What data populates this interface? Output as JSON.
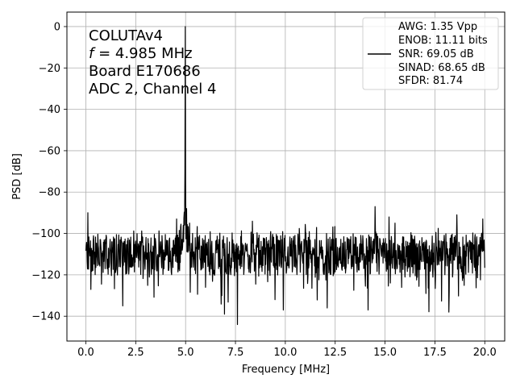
{
  "chart_data": {
    "type": "line",
    "xlabel": "Frequency [MHz]",
    "ylabel": "PSD [dB]",
    "xlim": [
      -0.95,
      21.0
    ],
    "ylim": [
      -152,
      7
    ],
    "xticks": [
      0.0,
      2.5,
      5.0,
      7.5,
      10.0,
      12.5,
      15.0,
      17.5,
      20.0
    ],
    "xtick_labels": [
      "0.0",
      "2.5",
      "5.0",
      "7.5",
      "10.0",
      "12.5",
      "15.0",
      "17.5",
      "20.0"
    ],
    "yticks": [
      0,
      -20,
      -40,
      -60,
      -80,
      -100,
      -120,
      -140
    ],
    "ytick_labels": [
      "0",
      "−20",
      "−40",
      "−60",
      "−80",
      "−100",
      "−120",
      "−140"
    ],
    "grid": true,
    "line_color": "#000000",
    "legend_placement": "top-right",
    "annotation": {
      "line1": "COLUTAv4",
      "line2_symbol": "f",
      "line2_rest": " = 4.985 MHz",
      "line3": "Board E170686",
      "line4": "ADC 2, Channel 4"
    },
    "legend": [
      "AWG: 1.35 Vpp",
      "ENOB: 11.11 bits",
      "SNR: 69.05 dB",
      "SINAD: 68.65 dB",
      "SFDR: 81.74"
    ],
    "noise_floor_db": -110,
    "fundamental": {
      "x": 4.985,
      "y": 0
    },
    "spurs": [
      {
        "x": 0.1,
        "y": -90
      },
      {
        "x": 4.55,
        "y": -93
      },
      {
        "x": 4.75,
        "y": -97
      },
      {
        "x": 5.05,
        "y": -88
      },
      {
        "x": 5.2,
        "y": -95
      },
      {
        "x": 7.6,
        "y": -144
      },
      {
        "x": 14.5,
        "y": -87
      },
      {
        "x": 15.2,
        "y": -92
      },
      {
        "x": 15.5,
        "y": -95
      },
      {
        "x": 18.6,
        "y": -91
      },
      {
        "x": 19.9,
        "y": -93
      }
    ],
    "min_points": [
      {
        "x": 1.85,
        "y": -135
      },
      {
        "x": 6.95,
        "y": -139
      },
      {
        "x": 9.9,
        "y": -137
      },
      {
        "x": 12.1,
        "y": -136
      },
      {
        "x": 14.15,
        "y": -137
      },
      {
        "x": 18.2,
        "y": -138
      }
    ]
  }
}
